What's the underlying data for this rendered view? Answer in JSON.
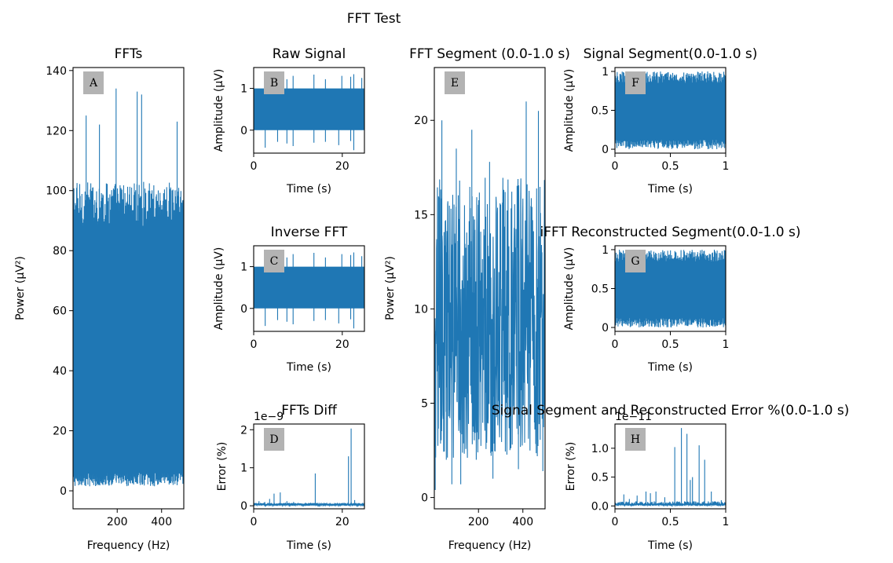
{
  "figure": {
    "title": "FFT Test"
  },
  "colors": {
    "series": "#1f77b4",
    "letter_box": "#b3b3b3"
  },
  "chart_data": [
    {
      "id": "A",
      "type": "line",
      "title": "FFTs",
      "xlabel": "Frequency (Hz)",
      "ylabel": "Power (μV²)",
      "xlim": [
        1,
        500
      ],
      "ylim": [
        -6,
        141
      ],
      "xticks": [
        200,
        400
      ],
      "yticks": [
        0,
        20,
        40,
        60,
        80,
        100,
        120,
        140
      ],
      "signal": {
        "kind": "dense_noise",
        "n": 500,
        "low": [
          1.5,
          6
        ],
        "high": [
          88,
          103
        ],
        "spikes": [
          [
            60,
            125
          ],
          [
            120,
            122
          ],
          [
            195,
            134
          ],
          [
            290,
            133
          ],
          [
            310,
            132
          ],
          [
            470,
            123
          ]
        ],
        "dips": []
      },
      "letter": "A"
    },
    {
      "id": "B",
      "type": "line",
      "title": "Raw Signal",
      "xlabel": "Time (s)",
      "ylabel": "Amplitude (μV)",
      "xlim": [
        0,
        25
      ],
      "ylim": [
        -0.55,
        1.5
      ],
      "xticks": [
        0,
        20
      ],
      "yticks": [
        0,
        1
      ],
      "signal": {
        "kind": "band_with_spikes",
        "n": 400,
        "low": [
          0,
          0
        ],
        "high": [
          1,
          1
        ],
        "spikes": [
          [
            2.6,
            1.28
          ],
          [
            3.9,
            1.3
          ],
          [
            7.5,
            1.22
          ],
          [
            8.9,
            1.3
          ],
          [
            13.6,
            1.33
          ],
          [
            16.2,
            1.22
          ],
          [
            19.9,
            1.3
          ],
          [
            21.9,
            1.28
          ],
          [
            22.6,
            1.34
          ],
          [
            24.4,
            1.25
          ]
        ],
        "dips": [
          [
            2.6,
            -0.42
          ],
          [
            5.4,
            -0.28
          ],
          [
            7.5,
            -0.32
          ],
          [
            8.9,
            -0.38
          ],
          [
            13.6,
            -0.3
          ],
          [
            16.2,
            -0.28
          ],
          [
            19.2,
            -0.36
          ],
          [
            21.9,
            -0.26
          ],
          [
            22.6,
            -0.48
          ]
        ]
      },
      "letter": "B"
    },
    {
      "id": "C",
      "type": "line",
      "title": "Inverse FFT",
      "xlabel": "Time (s)",
      "ylabel": "Amplitude (μV)",
      "xlim": [
        0,
        25
      ],
      "ylim": [
        -0.55,
        1.5
      ],
      "xticks": [
        0,
        20
      ],
      "yticks": [
        0,
        1
      ],
      "signal": {
        "kind": "band_with_spikes",
        "n": 400,
        "low": [
          0,
          0
        ],
        "high": [
          1,
          1
        ],
        "spikes": [
          [
            2.6,
            1.28
          ],
          [
            3.9,
            1.3
          ],
          [
            7.5,
            1.22
          ],
          [
            8.9,
            1.3
          ],
          [
            13.6,
            1.33
          ],
          [
            16.2,
            1.22
          ],
          [
            19.9,
            1.3
          ],
          [
            21.9,
            1.28
          ],
          [
            22.6,
            1.34
          ],
          [
            24.4,
            1.25
          ]
        ],
        "dips": [
          [
            2.6,
            -0.42
          ],
          [
            5.4,
            -0.28
          ],
          [
            7.5,
            -0.32
          ],
          [
            8.9,
            -0.38
          ],
          [
            13.6,
            -0.3
          ],
          [
            16.2,
            -0.28
          ],
          [
            19.2,
            -0.36
          ],
          [
            21.9,
            -0.26
          ],
          [
            22.6,
            -0.48
          ]
        ]
      },
      "letter": "C"
    },
    {
      "id": "D",
      "type": "line",
      "title": "FFTs Diff",
      "xlabel": "Time (s)",
      "ylabel": "Error (%)",
      "offset_text": "1e−9",
      "xlim": [
        0,
        25
      ],
      "ylim": [
        -0.08,
        2.15
      ],
      "xticks": [
        0,
        20
      ],
      "yticks": [
        0,
        1,
        2
      ],
      "signal": {
        "kind": "sparse_spikes",
        "n": 300,
        "low": [
          0,
          0.02
        ],
        "high": [
          0.03,
          0.08
        ],
        "spikes": [
          [
            1.2,
            0.12
          ],
          [
            2.5,
            0.1
          ],
          [
            3.6,
            0.18
          ],
          [
            4.6,
            0.32
          ],
          [
            6.0,
            0.35
          ],
          [
            7.5,
            0.12
          ],
          [
            9.0,
            0.1
          ],
          [
            13.9,
            0.85
          ],
          [
            16.5,
            0.08
          ],
          [
            21.4,
            1.3
          ],
          [
            22.0,
            2.03
          ],
          [
            22.8,
            0.15
          ]
        ],
        "dips": []
      },
      "letter": "D"
    },
    {
      "id": "E",
      "type": "line",
      "title": "FFT Segment (0.0-1.0 s)",
      "xlabel": "Frequency (Hz)",
      "ylabel": "Power (μV²)",
      "xlim": [
        1,
        500
      ],
      "ylim": [
        -0.6,
        22.8
      ],
      "xticks": [
        200,
        400
      ],
      "yticks": [
        0,
        5,
        10,
        15,
        20
      ],
      "signal": {
        "kind": "noisy_line",
        "n": 500,
        "low": [
          2,
          6
        ],
        "high": [
          10,
          17
        ],
        "spikes": [
          [
            35,
            20
          ],
          [
            170,
            19.5
          ],
          [
            415,
            21
          ],
          [
            470,
            20.5
          ],
          [
            100,
            18.5
          ],
          [
            250,
            17.8
          ],
          [
            320,
            16.2
          ]
        ],
        "dips": [
          [
            5,
            0.4
          ],
          [
            80,
            0.7
          ],
          [
            120,
            0.7
          ],
          [
            265,
            1.0
          ],
          [
            380,
            1.5
          ],
          [
            490,
            1.4
          ],
          [
            55,
            2.0
          ]
        ]
      },
      "letter": "E"
    },
    {
      "id": "F",
      "type": "line",
      "title": "Signal Segment(0.0-1.0 s)",
      "xlabel": "Time (s)",
      "ylabel": "Amplitude (μV)",
      "xlim": [
        0,
        1
      ],
      "ylim": [
        -0.05,
        1.05
      ],
      "xticks": [
        0.0,
        0.5,
        1.0
      ],
      "yticks": [
        0.0,
        0.5,
        1.0
      ],
      "signal": {
        "kind": "noisy_band",
        "n": 400,
        "low": [
          0.0,
          0.12
        ],
        "high": [
          0.85,
          1.0
        ],
        "spikes": [],
        "dips": []
      },
      "letter": "F"
    },
    {
      "id": "G",
      "type": "line",
      "title": "iFFT Reconstructed Segment(0.0-1.0 s)",
      "xlabel": "Time (s)",
      "ylabel": "Amplitude (μV)",
      "xlim": [
        0,
        1
      ],
      "ylim": [
        -0.05,
        1.05
      ],
      "xticks": [
        0.0,
        0.5,
        1.0
      ],
      "yticks": [
        0.0,
        0.5,
        1.0
      ],
      "signal": {
        "kind": "noisy_band",
        "n": 400,
        "low": [
          0.0,
          0.12
        ],
        "high": [
          0.85,
          1.0
        ],
        "spikes": [],
        "dips": []
      },
      "letter": "G"
    },
    {
      "id": "H",
      "type": "line",
      "title": "Signal Segment and Reconstructed Error %(0.0-1.0 s)",
      "xlabel": "Time (s)",
      "ylabel": "Error (%)",
      "offset_text": "1e−11",
      "xlim": [
        0,
        1
      ],
      "ylim": [
        -0.05,
        1.42
      ],
      "xticks": [
        0.0,
        0.5,
        1.0
      ],
      "yticks": [
        0.0,
        0.5,
        1.0
      ],
      "ytick_labels": [
        "0.0",
        "0.5",
        "1.0"
      ],
      "signal": {
        "kind": "sparse_spikes",
        "n": 300,
        "low": [
          0,
          0.02
        ],
        "high": [
          0.02,
          0.08
        ],
        "spikes": [
          [
            0.08,
            0.2
          ],
          [
            0.13,
            0.12
          ],
          [
            0.2,
            0.18
          ],
          [
            0.28,
            0.25
          ],
          [
            0.32,
            0.22
          ],
          [
            0.37,
            0.25
          ],
          [
            0.45,
            0.15
          ],
          [
            0.54,
            1.02
          ],
          [
            0.6,
            1.35
          ],
          [
            0.65,
            1.25
          ],
          [
            0.68,
            0.45
          ],
          [
            0.7,
            0.5
          ],
          [
            0.76,
            1.05
          ],
          [
            0.81,
            0.8
          ],
          [
            0.87,
            0.25
          ],
          [
            0.96,
            0.1
          ]
        ],
        "dips": []
      },
      "letter": "H"
    }
  ]
}
